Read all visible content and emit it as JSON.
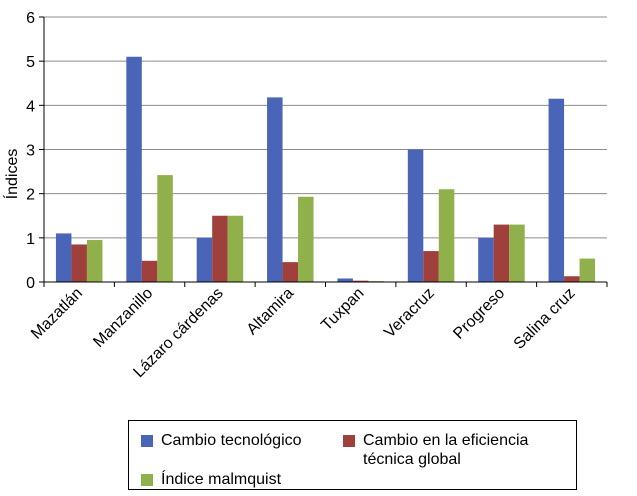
{
  "chart_data": {
    "type": "bar",
    "title": "",
    "xlabel": "",
    "ylabel": "Índices",
    "ylim": [
      0,
      6
    ],
    "yticks": [
      "0",
      "1",
      "2",
      "3",
      "4",
      "5",
      "6"
    ],
    "grid": true,
    "legend_position": "bottom",
    "categories": [
      "Mazatlán",
      "Manzanillo",
      "Lázaro cárdenas",
      "Altamira",
      "Tuxpan",
      "Veracruz",
      "Progreso",
      "Salina cruz"
    ],
    "series": [
      {
        "name": "Cambio tecnológico",
        "color": "#4a65b8",
        "values": [
          1.1,
          5.1,
          1.0,
          4.18,
          0.08,
          3.0,
          1.0,
          4.15
        ]
      },
      {
        "name": "Cambio en la eficiencia\ntécnica global",
        "color": "#a0403c",
        "values": [
          0.85,
          0.48,
          1.5,
          0.45,
          0.03,
          0.7,
          1.3,
          0.13
        ]
      },
      {
        "name": "Índice malmquist",
        "color": "#8fb04a",
        "values": [
          0.95,
          2.42,
          1.5,
          1.93,
          0.02,
          2.1,
          1.3,
          0.53
        ]
      }
    ]
  }
}
